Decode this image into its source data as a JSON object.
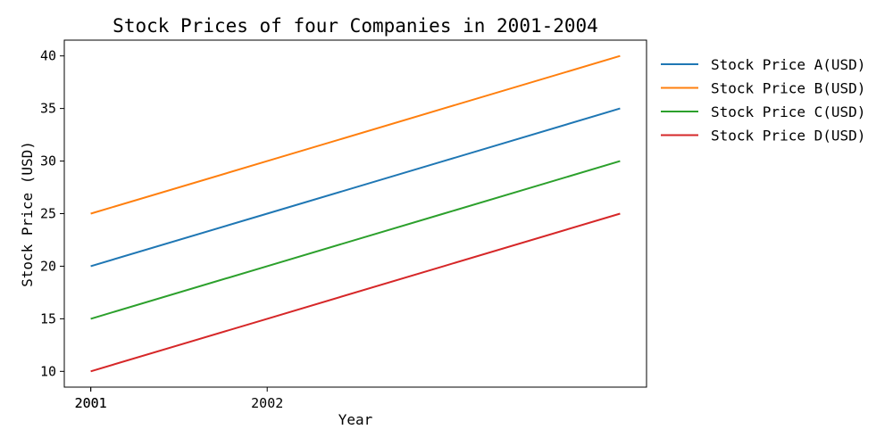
{
  "chart_data": {
    "type": "line",
    "title": "Stock Prices of four Companies in 2001-2004",
    "xlabel": "Year",
    "ylabel": "Stock Price (USD)",
    "x": [
      2001,
      2002,
      2003,
      2004
    ],
    "x_tick_labels": [
      "2001",
      "2001",
      "2002"
    ],
    "y_ticks": [
      10,
      15,
      20,
      25,
      30,
      35,
      40
    ],
    "ylim": [
      8.5,
      41.5
    ],
    "legend_position": "outside-top-right",
    "grid": false,
    "series": [
      {
        "name": "Stock Price A(USD)",
        "color": "#1f77b4",
        "values": [
          20,
          25,
          30,
          35
        ]
      },
      {
        "name": "Stock Price B(USD)",
        "color": "#ff7f0e",
        "values": [
          25,
          30,
          35,
          40
        ]
      },
      {
        "name": "Stock Price C(USD)",
        "color": "#2ca02c",
        "values": [
          15,
          20,
          25,
          30
        ]
      },
      {
        "name": "Stock Price D(USD)",
        "color": "#d62728",
        "values": [
          10,
          15,
          20,
          25
        ]
      }
    ]
  }
}
